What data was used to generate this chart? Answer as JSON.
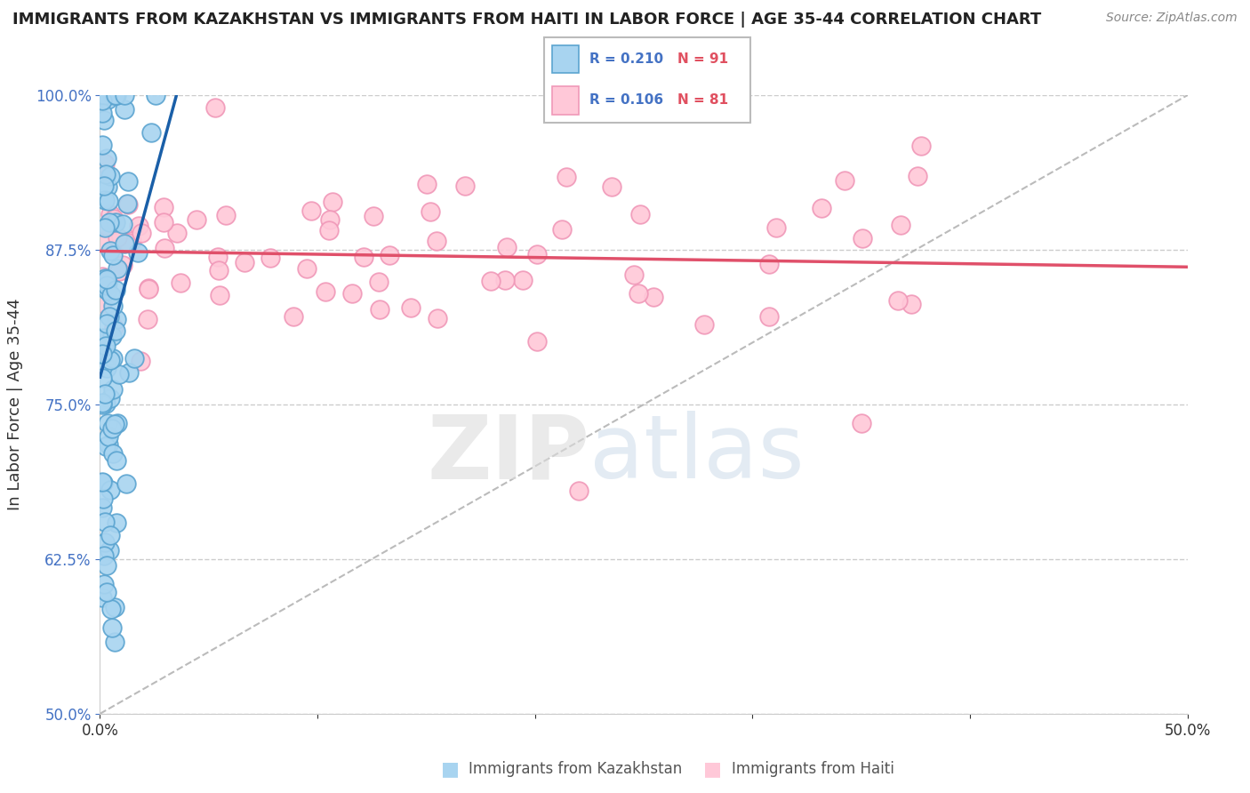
{
  "title": "IMMIGRANTS FROM KAZAKHSTAN VS IMMIGRANTS FROM HAITI IN LABOR FORCE | AGE 35-44 CORRELATION CHART",
  "source": "Source: ZipAtlas.com",
  "ylabel": "In Labor Force | Age 35-44",
  "xlim": [
    0.0,
    0.5
  ],
  "ylim": [
    0.5,
    1.0
  ],
  "kazakhstan_color": "#a8d4f0",
  "kazakhstan_edge": "#5ba4d0",
  "haiti_color": "#ffc8d8",
  "haiti_edge": "#f098b8",
  "trend_blue": "#1a5fa8",
  "trend_pink": "#e0506a",
  "diag_color": "#aaaaaa",
  "legend_R1": "R = 0.210",
  "legend_N1": "N = 91",
  "legend_R2": "R = 0.106",
  "legend_N2": "N = 81",
  "legend_label1": "Immigrants from Kazakhstan",
  "legend_label2": "Immigrants from Haiti",
  "n_kaz": 91,
  "n_hai": 81,
  "R_kaz": 0.21,
  "R_hai": 0.106,
  "title_fontsize": 13,
  "label_fontsize": 13,
  "tick_fontsize": 12,
  "legend_fontsize": 11,
  "ytick_color": "#4472c4",
  "xtick_color": "#333333",
  "grid_color": "#cccccc",
  "axis_color": "#cccccc",
  "watermark1": "ZIP",
  "watermark2": "atlas"
}
